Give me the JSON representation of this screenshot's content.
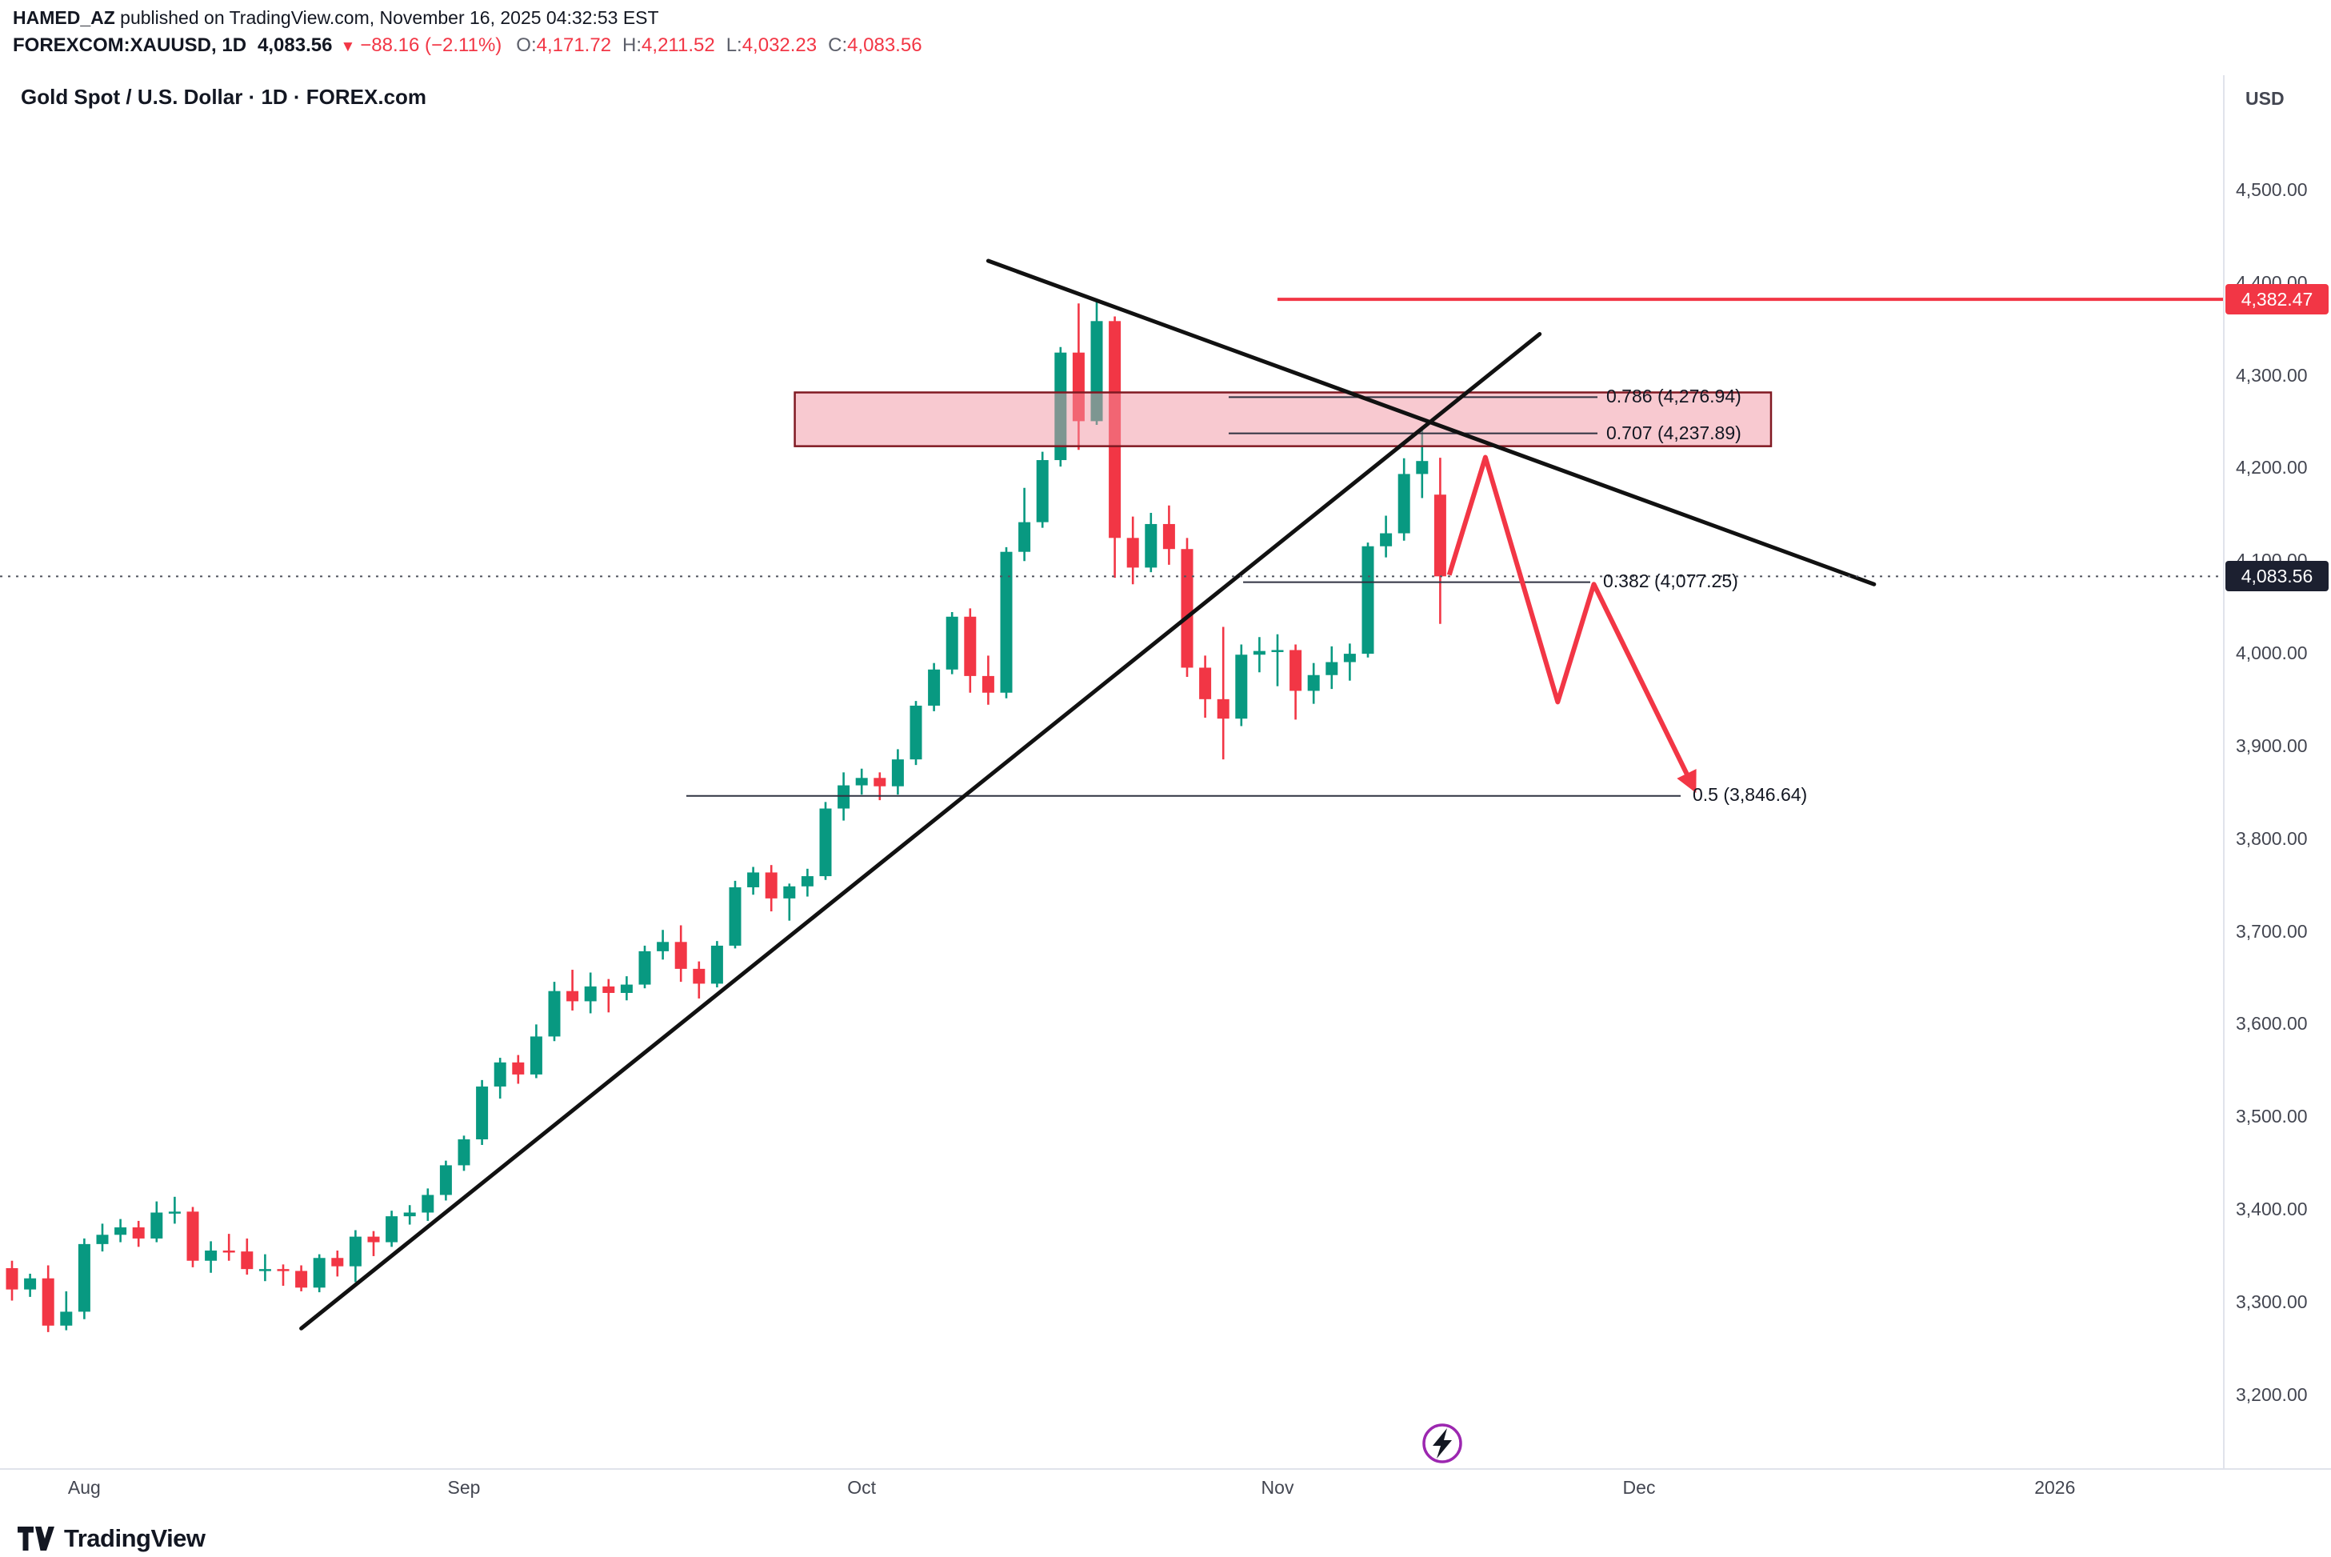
{
  "page": {
    "published_line": {
      "author": "HAMED_AZ",
      "rest": " published on TradingView.com, November 16, 2025 04:32:53 EST"
    },
    "symbol_line": {
      "symbol": "FOREXCOM:XAUUSD, 1D",
      "last": "4,083.56",
      "direction_icon": "▼",
      "change": "−88.16 (−2.11%)",
      "o_label": "O:",
      "o": "4,171.72",
      "h_label": "H:",
      "h": "4,211.52",
      "l_label": "L:",
      "l": "4,032.23",
      "c_label": "C:",
      "c": "4,083.56"
    },
    "footer": {
      "brand": "TradingView"
    }
  },
  "colors": {
    "up": "#089981",
    "down": "#f23645",
    "trendline": "#111111",
    "fib_line": "#2f3241",
    "zone_fill": "#f193a2",
    "zone_border": "#801922",
    "dotted": "#50535e",
    "badge_dark": "#1c2030",
    "boost_ring": "#9c27b0",
    "bolt": "#131722",
    "separator": "#e0e3eb"
  },
  "chart_data": {
    "type": "candlestick",
    "title": "Gold Spot / U.S. Dollar · 1D · FOREX.com",
    "symbol": "FOREXCOM:XAUUSD",
    "timeframe": "1D",
    "currency": "USD",
    "ylim": [
      3150,
      4560
    ],
    "price_ticks": [
      {
        "label": "4,500.00",
        "value": 4500
      },
      {
        "label": "4,400.00",
        "value": 4400
      },
      {
        "label": "4,300.00",
        "value": 4300
      },
      {
        "label": "4,200.00",
        "value": 4200
      },
      {
        "label": "4,100.00",
        "value": 4100
      },
      {
        "label": "4,000.00",
        "value": 4000
      },
      {
        "label": "3,900.00",
        "value": 3900
      },
      {
        "label": "3,800.00",
        "value": 3800
      },
      {
        "label": "3,700.00",
        "value": 3700
      },
      {
        "label": "3,600.00",
        "value": 3600
      },
      {
        "label": "3,500.00",
        "value": 3500
      },
      {
        "label": "3,400.00",
        "value": 3400
      },
      {
        "label": "3,300.00",
        "value": 3300
      },
      {
        "label": "3,200.00",
        "value": 3200
      }
    ],
    "time_axis": [
      {
        "label": "Aug",
        "t": 4
      },
      {
        "label": "Sep",
        "t": 25
      },
      {
        "label": "Oct",
        "t": 47
      },
      {
        "label": "Nov",
        "t": 70
      },
      {
        "label": "Dec",
        "t": 90
      },
      {
        "label": "2026",
        "t": 113
      }
    ],
    "price_labels": [
      {
        "text": "4,382.47",
        "value": 4382.47,
        "bg": "#f23645"
      },
      {
        "text": "4,083.56",
        "value": 4083.56,
        "bg": "#1c2030"
      }
    ],
    "columns": [
      "date",
      "open",
      "high",
      "low",
      "close"
    ],
    "ohlc": [
      [
        "2025-07-28",
        3337,
        3345,
        3302,
        3314
      ],
      [
        "2025-07-29",
        3314,
        3331,
        3306,
        3326
      ],
      [
        "2025-07-30",
        3326,
        3340,
        3268,
        3275
      ],
      [
        "2025-07-31",
        3275,
        3312,
        3270,
        3290
      ],
      [
        "2025-08-01",
        3290,
        3369,
        3282,
        3363
      ],
      [
        "2025-08-04",
        3363,
        3385,
        3355,
        3373
      ],
      [
        "2025-08-05",
        3373,
        3390,
        3365,
        3381
      ],
      [
        "2025-08-06",
        3381,
        3388,
        3360,
        3369
      ],
      [
        "2025-08-07",
        3369,
        3409,
        3365,
        3397
      ],
      [
        "2025-08-08",
        3397,
        3414,
        3385,
        3398
      ],
      [
        "2025-08-11",
        3398,
        3403,
        3338,
        3345
      ],
      [
        "2025-08-12",
        3345,
        3366,
        3332,
        3356
      ],
      [
        "2025-08-13",
        3356,
        3374,
        3345,
        3355
      ],
      [
        "2025-08-14",
        3355,
        3369,
        3330,
        3336
      ],
      [
        "2025-08-15",
        3336,
        3352,
        3323,
        3336
      ],
      [
        "2025-08-18",
        3336,
        3341,
        3318,
        3334
      ],
      [
        "2025-08-19",
        3334,
        3340,
        3312,
        3316
      ],
      [
        "2025-08-20",
        3316,
        3352,
        3311,
        3348
      ],
      [
        "2025-08-21",
        3348,
        3356,
        3328,
        3339
      ],
      [
        "2025-08-22",
        3339,
        3378,
        3322,
        3371
      ],
      [
        "2025-08-25",
        3371,
        3377,
        3350,
        3365
      ],
      [
        "2025-08-26",
        3365,
        3399,
        3360,
        3393
      ],
      [
        "2025-08-27",
        3393,
        3405,
        3384,
        3397
      ],
      [
        "2025-08-28",
        3397,
        3423,
        3388,
        3416
      ],
      [
        "2025-08-29",
        3416,
        3453,
        3410,
        3448
      ],
      [
        "2025-09-01",
        3448,
        3480,
        3442,
        3476
      ],
      [
        "2025-09-02",
        3476,
        3540,
        3470,
        3533
      ],
      [
        "2025-09-03",
        3533,
        3564,
        3520,
        3559
      ],
      [
        "2025-09-04",
        3559,
        3567,
        3536,
        3546
      ],
      [
        "2025-09-05",
        3546,
        3600,
        3542,
        3587
      ],
      [
        "2025-09-08",
        3587,
        3646,
        3582,
        3636
      ],
      [
        "2025-09-09",
        3636,
        3659,
        3615,
        3625
      ],
      [
        "2025-09-10",
        3625,
        3656,
        3612,
        3641
      ],
      [
        "2025-09-11",
        3641,
        3649,
        3613,
        3634
      ],
      [
        "2025-09-12",
        3634,
        3652,
        3626,
        3643
      ],
      [
        "2025-09-15",
        3643,
        3685,
        3639,
        3679
      ],
      [
        "2025-09-16",
        3679,
        3702,
        3670,
        3689
      ],
      [
        "2025-09-17",
        3689,
        3707,
        3646,
        3660
      ],
      [
        "2025-09-18",
        3660,
        3668,
        3628,
        3644
      ],
      [
        "2025-09-19",
        3644,
        3690,
        3640,
        3685
      ],
      [
        "2025-09-22",
        3685,
        3755,
        3682,
        3748
      ],
      [
        "2025-09-23",
        3748,
        3770,
        3740,
        3764
      ],
      [
        "2025-09-24",
        3764,
        3772,
        3722,
        3736
      ],
      [
        "2025-09-25",
        3736,
        3752,
        3712,
        3749
      ],
      [
        "2025-09-26",
        3749,
        3768,
        3738,
        3760
      ],
      [
        "2025-09-29",
        3760,
        3840,
        3756,
        3833
      ],
      [
        "2025-09-30",
        3833,
        3872,
        3820,
        3858
      ],
      [
        "2025-10-01",
        3858,
        3876,
        3848,
        3866
      ],
      [
        "2025-10-02",
        3866,
        3872,
        3842,
        3857
      ],
      [
        "2025-10-03",
        3857,
        3897,
        3848,
        3886
      ],
      [
        "2025-10-06",
        3886,
        3949,
        3880,
        3944
      ],
      [
        "2025-10-07",
        3944,
        3990,
        3938,
        3983
      ],
      [
        "2025-10-08",
        3983,
        4045,
        3978,
        4040
      ],
      [
        "2025-10-09",
        4040,
        4049,
        3958,
        3976
      ],
      [
        "2025-10-10",
        3976,
        3998,
        3945,
        3958
      ],
      [
        "2025-10-13",
        3958,
        4115,
        3952,
        4110
      ],
      [
        "2025-10-14",
        4110,
        4179,
        4100,
        4142
      ],
      [
        "2025-10-15",
        4142,
        4218,
        4136,
        4209
      ],
      [
        "2025-10-16",
        4209,
        4331,
        4202,
        4325
      ],
      [
        "2025-10-17",
        4325,
        4378,
        4220,
        4251
      ],
      [
        "2025-10-20",
        4251,
        4382,
        4247,
        4359
      ],
      [
        "2025-10-21",
        4359,
        4364,
        4082,
        4125
      ],
      [
        "2025-10-22",
        4125,
        4148,
        4075,
        4093
      ],
      [
        "2025-10-23",
        4093,
        4152,
        4088,
        4140
      ],
      [
        "2025-10-24",
        4140,
        4160,
        4096,
        4113
      ],
      [
        "2025-10-27",
        4113,
        4125,
        3975,
        3985
      ],
      [
        "2025-10-28",
        3985,
        3998,
        3931,
        3951
      ],
      [
        "2025-10-29",
        3951,
        4029,
        3886,
        3930
      ],
      [
        "2025-10-30",
        3930,
        4010,
        3922,
        3999
      ],
      [
        "2025-10-31",
        3999,
        4018,
        3980,
        4003
      ],
      [
        "2025-11-03",
        4003,
        4021,
        3965,
        4004
      ],
      [
        "2025-11-04",
        4004,
        4010,
        3929,
        3960
      ],
      [
        "2025-11-05",
        3960,
        3990,
        3946,
        3977
      ],
      [
        "2025-11-06",
        3977,
        4008,
        3962,
        3991
      ],
      [
        "2025-11-07",
        3991,
        4011,
        3971,
        4000
      ],
      [
        "2025-11-10",
        4000,
        4120,
        3996,
        4116
      ],
      [
        "2025-11-11",
        4116,
        4149,
        4104,
        4130
      ],
      [
        "2025-11-12",
        4130,
        4211,
        4122,
        4194
      ],
      [
        "2025-11-13",
        4194,
        4245,
        4168,
        4208
      ],
      [
        "2025-11-14",
        4171.72,
        4211.52,
        4032.23,
        4083.56
      ]
    ],
    "overlays": {
      "supply_zone": {
        "t1": 43.3,
        "t2": 97.3,
        "price_top": 4282,
        "price_bottom": 4224
      },
      "fib_levels": [
        {
          "label": "0.786 (4,276.94)",
          "ratio": 0.786,
          "price": 4276.94,
          "t1": 67.3,
          "t2": 87.7
        },
        {
          "label": "0.707 (4,237.89)",
          "ratio": 0.707,
          "price": 4237.89,
          "t1": 67.3,
          "t2": 87.7
        },
        {
          "label": "0.382 (4,077.25)",
          "ratio": 0.382,
          "price": 4077.25,
          "t1": 68.1,
          "t2": 87.3
        },
        {
          "label": "0.5 (3,846.64)",
          "ratio": 0.5,
          "price": 3846.64,
          "t1": 37.3,
          "t2": 92.3
        }
      ],
      "trendlines": [
        {
          "name": "ascending-support-trendline",
          "t1": 16,
          "p1": 3272,
          "t2": 84.5,
          "p2": 4345
        },
        {
          "name": "descending-resistance-trendline",
          "t1": 54,
          "p1": 4424,
          "t2": 103,
          "p2": 4075
        }
      ],
      "horizontal_line": {
        "price": 4382.47,
        "t_start": 70
      },
      "current_price_line": {
        "price": 4083.56,
        "style": "dotted"
      },
      "projection_path": {
        "points": [
          {
            "t": 79.5,
            "p": 4085
          },
          {
            "t": 81.5,
            "p": 4212
          },
          {
            "t": 85.5,
            "p": 3948
          },
          {
            "t": 87.5,
            "p": 4075
          },
          {
            "t": 93,
            "p": 3856
          }
        ]
      }
    }
  }
}
